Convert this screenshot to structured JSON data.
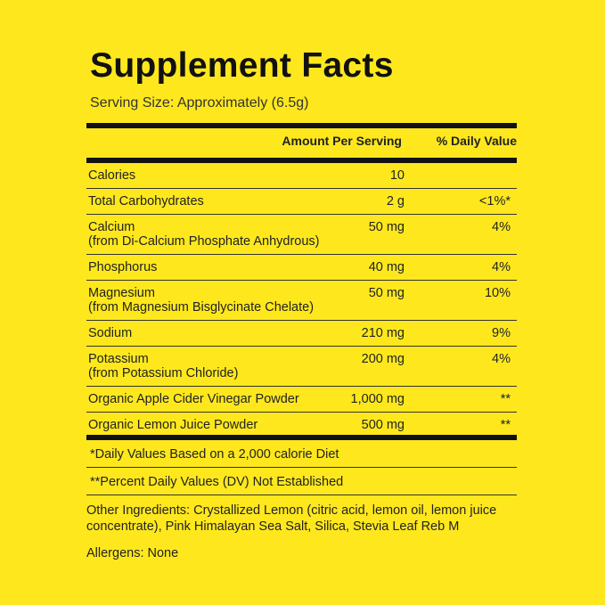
{
  "header": {
    "title": "Supplement Facts",
    "serving_size": "Serving Size: Approximately (6.5g)"
  },
  "table": {
    "columns": [
      "Amount Per Serving",
      "% Daily Value"
    ],
    "rows": [
      {
        "name": "Calories",
        "amount": "10"
      },
      {
        "name": "Total Carbohydrates",
        "amount": "2 g",
        "daily_value": "<1%*"
      },
      {
        "name": "Calcium",
        "source": "(from Di-Calcium Phosphate Anhydrous)",
        "amount": "50 mg",
        "daily_value": "4%"
      },
      {
        "name": "Phosphorus",
        "amount": "40 mg",
        "daily_value": "4%"
      },
      {
        "name": "Magnesium",
        "source": "(from Magnesium Bisglycinate Chelate)",
        "amount": "50 mg",
        "daily_value": "10%"
      },
      {
        "name": "Sodium",
        "amount": "210 mg",
        "daily_value": "9%"
      },
      {
        "name": "Potassium",
        "source": "(from Potassium Chloride)",
        "amount": "200 mg",
        "daily_value": "4%"
      },
      {
        "name": "Organic Apple Cider Vinegar Powder",
        "amount": "1,000 mg",
        "daily_value": "**"
      },
      {
        "name": "Organic Lemon Juice Powder",
        "amount": "500 mg",
        "daily_value": "**"
      }
    ]
  },
  "footnotes": [
    "*Daily Values Based on a 2,000 calorie Diet",
    "**Percent Daily Values (DV) Not Established"
  ],
  "other_ingredients": "Other Ingredients: Crystallized Lemon (citric acid, lemon oil, lemon juice concentrate), Pink Himalayan Sea Salt, Silica, Stevia Leaf Reb M",
  "allergens": "Allergens: None"
}
